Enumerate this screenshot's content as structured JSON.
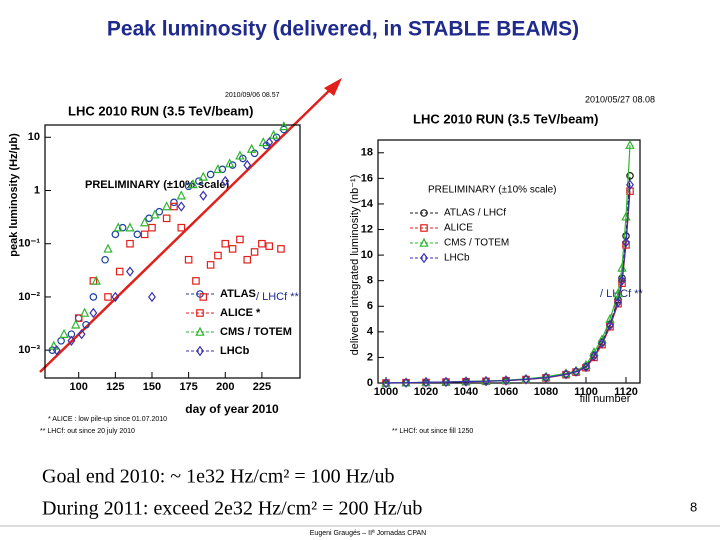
{
  "slide_title": "Peak luminosity (delivered, in STABLE BEAMS)",
  "goal_lines": [
    "Goal end 2010:  ~ 1e32 Hz/cm² = 100 Hz/ub",
    "During 2011: exceed 2e32 Hz/cm² = 200 Hz/ub"
  ],
  "page_number": "8",
  "footer": "Eugeni Graugés – IIª Jornadas CPAN",
  "chart_data": [
    {
      "type": "scatter",
      "title": "LHC 2010 RUN (3.5 TeV/beam)",
      "timestamp": "2010/09/06   08.57",
      "subtitle": "PRELIMINARY (±10% scale)",
      "x_label": "day of year 2010",
      "y_label": "peak luminosity (Hz/μb)",
      "annotations": [
        "/ LHCf **",
        "* ALICE : low pile-up since 01.07.2010",
        "** LHCf: out since 20 july 2010"
      ],
      "log_y": true,
      "xlim": [
        77,
        251
      ],
      "ylim": [
        0.0003,
        17
      ],
      "xticks": [
        100,
        125,
        150,
        175,
        200,
        225
      ],
      "yticks": [
        {
          "value": 0.001,
          "label": "10⁻³"
        },
        {
          "value": 0.01,
          "label": "10⁻²"
        },
        {
          "value": 0.1,
          "label": "10⁻¹"
        },
        1,
        10
      ],
      "series": [
        {
          "name": "ATLAS",
          "color": "#1a3fa0",
          "marker": "circle",
          "x": [
            82,
            88,
            95,
            100,
            105,
            110,
            118,
            125,
            130,
            140,
            148,
            155,
            165,
            175,
            182,
            190,
            198,
            205,
            212,
            220,
            228,
            235,
            240
          ],
          "values": [
            0.001,
            0.0015,
            0.002,
            0.004,
            0.003,
            0.01,
            0.05,
            0.15,
            0.2,
            0.15,
            0.3,
            0.4,
            0.6,
            1.2,
            1.5,
            2,
            2.5,
            3,
            4,
            5,
            7,
            10,
            14
          ]
        },
        {
          "name": "ALICE *",
          "color": "#e0201b",
          "marker": "square",
          "x": [
            100,
            110,
            120,
            128,
            135,
            145,
            150,
            160,
            165,
            170,
            175,
            180,
            185,
            190,
            195,
            200,
            205,
            210,
            215,
            220,
            225,
            230,
            238
          ],
          "values": [
            0.004,
            0.02,
            0.01,
            0.03,
            0.1,
            0.15,
            0.2,
            0.3,
            0.5,
            0.2,
            0.05,
            0.02,
            0.01,
            0.04,
            0.06,
            0.1,
            0.08,
            0.12,
            0.05,
            0.07,
            0.1,
            0.09,
            0.08
          ]
        },
        {
          "name": "CMS / TOTEM",
          "color": "#2fb52f",
          "marker": "triangle",
          "x": [
            83,
            90,
            98,
            104,
            112,
            120,
            127,
            135,
            145,
            152,
            160,
            170,
            178,
            185,
            195,
            203,
            210,
            218,
            226,
            233,
            240
          ],
          "values": [
            0.0012,
            0.002,
            0.003,
            0.005,
            0.02,
            0.08,
            0.2,
            0.2,
            0.25,
            0.35,
            0.5,
            0.8,
            1.3,
            1.8,
            2.5,
            3.2,
            4.5,
            6,
            8,
            11,
            16
          ]
        },
        {
          "name": "LHCb",
          "color": "#3a2fb0",
          "marker": "diamond",
          "x": [
            85,
            95,
            102,
            110,
            125,
            135,
            150,
            170,
            185,
            200,
            215,
            230
          ],
          "values": [
            0.001,
            0.0015,
            0.002,
            0.005,
            0.01,
            0.03,
            0.01,
            0.5,
            0.8,
            1.5,
            3,
            8
          ]
        }
      ]
    },
    {
      "type": "line",
      "title": "LHC 2010 RUN (3.5 TeV/beam)",
      "timestamp": "2010/05/27   08.08",
      "subtitle": "PRELIMINARY (±10% scale)",
      "x_label": "fill number",
      "y_label": "delivered integrated luminosity (nb⁻¹)",
      "annotations": [
        "/ LHCf **",
        "** LHCf: out since fill 1250"
      ],
      "log_y": false,
      "xlim": [
        996,
        1127
      ],
      "ylim": [
        0,
        19
      ],
      "xticks": [
        1000,
        1020,
        1040,
        1060,
        1080,
        1100,
        1120
      ],
      "yticks": [
        0,
        2,
        4,
        6,
        8,
        10,
        12,
        14,
        16,
        18
      ],
      "x": [
        1000,
        1010,
        1020,
        1030,
        1040,
        1050,
        1060,
        1070,
        1080,
        1090,
        1095,
        1100,
        1104,
        1108,
        1112,
        1116,
        1118,
        1120,
        1122
      ],
      "series": [
        {
          "name": "ATLAS / LHCf",
          "color": "#1a1a1a",
          "marker": "circle",
          "values": [
            0,
            0.02,
            0.05,
            0.08,
            0.12,
            0.15,
            0.2,
            0.3,
            0.45,
            0.7,
            0.9,
            1.3,
            2.2,
            3.2,
            4.6,
            6.5,
            8.2,
            11.5,
            16.2
          ]
        },
        {
          "name": "ALICE",
          "color": "#e0201b",
          "marker": "square",
          "values": [
            0,
            0.02,
            0.04,
            0.07,
            0.1,
            0.13,
            0.18,
            0.27,
            0.4,
            0.65,
            0.85,
            1.2,
            2.0,
            3.0,
            4.4,
            6.2,
            7.8,
            10.8,
            15.0
          ]
        },
        {
          "name": "CMS / TOTEM",
          "color": "#2fb52f",
          "marker": "triangle",
          "values": [
            0,
            0.02,
            0.05,
            0.08,
            0.12,
            0.16,
            0.22,
            0.32,
            0.48,
            0.75,
            0.95,
            1.4,
            2.4,
            3.4,
            5.0,
            7.0,
            9.0,
            13.0,
            18.6
          ]
        },
        {
          "name": "LHCb",
          "color": "#3a2fb0",
          "marker": "diamond",
          "values": [
            0,
            0.02,
            0.05,
            0.08,
            0.11,
            0.14,
            0.19,
            0.28,
            0.42,
            0.68,
            0.88,
            1.25,
            2.1,
            3.1,
            4.5,
            6.3,
            8.0,
            11.0,
            15.5
          ]
        }
      ]
    }
  ]
}
